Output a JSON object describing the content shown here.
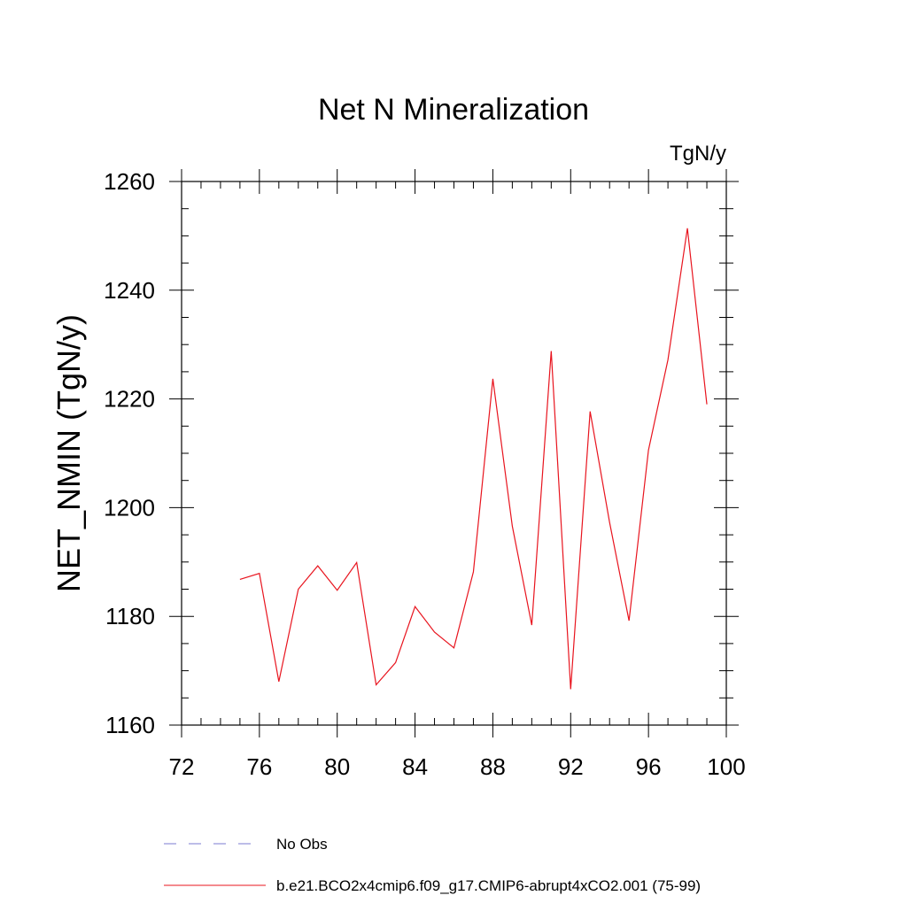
{
  "chart_data": {
    "type": "line",
    "title": "Net N Mineralization",
    "units_label": "TgN/y",
    "ylabel": "NET_NMIN  (TgN/y)",
    "xlabel": "",
    "xlim": [
      72,
      100
    ],
    "ylim": [
      1160,
      1260
    ],
    "x_ticks": [
      72,
      76,
      80,
      84,
      88,
      92,
      96,
      100
    ],
    "x_tick_labels": [
      "72",
      "76",
      "80",
      "84",
      "88",
      "92",
      "96",
      "100"
    ],
    "x_minor_ticks": [
      73,
      74,
      75,
      77,
      78,
      79,
      81,
      82,
      83,
      85,
      86,
      87,
      89,
      90,
      91,
      93,
      94,
      95,
      97,
      98,
      99
    ],
    "y_ticks": [
      1160,
      1180,
      1200,
      1220,
      1240,
      1260
    ],
    "y_tick_labels": [
      "1160",
      "1180",
      "1200",
      "1220",
      "1240",
      "1260"
    ],
    "y_minor_ticks": [
      1165,
      1170,
      1175,
      1185,
      1190,
      1195,
      1205,
      1210,
      1215,
      1225,
      1230,
      1235,
      1245,
      1250,
      1255
    ],
    "grid": false,
    "legend_position": "bottom-left",
    "series": [
      {
        "name": "b.e21.BCO2x4cmip6.f09_g17.CMIP6-abrupt4xCO2.001 (75-99)",
        "color": "#e8141e",
        "style": "solid",
        "x": [
          75,
          76,
          77,
          78,
          79,
          80,
          81,
          82,
          83,
          84,
          85,
          86,
          87,
          88,
          89,
          90,
          91,
          92,
          93,
          94,
          95,
          96,
          97,
          98,
          99
        ],
        "values": [
          1186.8,
          1187.9,
          1168.0,
          1185.0,
          1189.3,
          1184.8,
          1189.9,
          1167.4,
          1171.5,
          1181.8,
          1177.1,
          1174.2,
          1188.2,
          1223.7,
          1196.6,
          1178.4,
          1228.8,
          1166.6,
          1217.7,
          1197.3,
          1179.2,
          1210.6,
          1227.2,
          1251.4,
          1219.0
        ]
      }
    ],
    "legend": [
      {
        "label": "No Obs",
        "color": "#7b7bd0",
        "style": "dashed"
      },
      {
        "label": "b.e21.BCO2x4cmip6.f09_g17.CMIP6-abrupt4xCO2.001 (75-99)",
        "color": "#e8141e",
        "style": "solid"
      }
    ]
  }
}
